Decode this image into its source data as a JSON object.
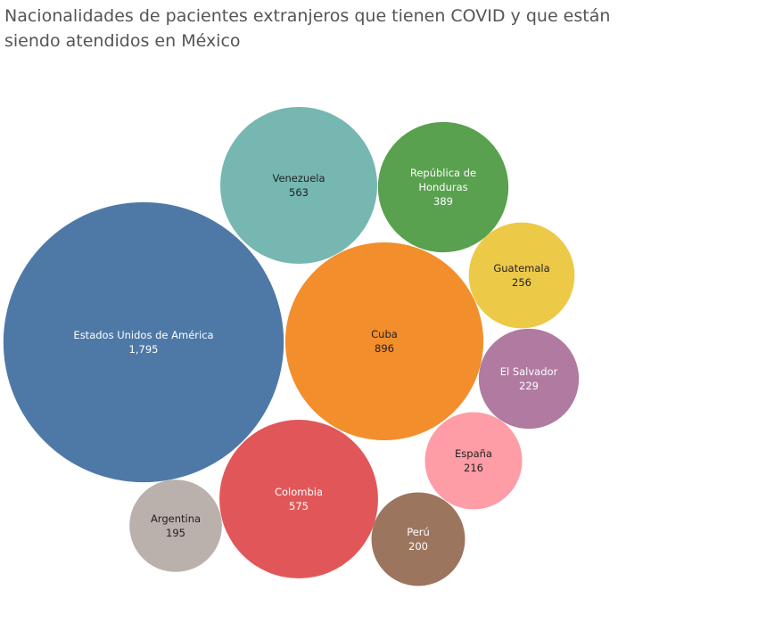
{
  "chart_data": {
    "type": "packed-bubble",
    "title": "Nacionalidades de pacientes extranjeros que tienen COVID y que están siendo atendidos en México",
    "series": [
      {
        "name": "Estados Unidos de América",
        "value": "1,795",
        "n": 1795,
        "color": "#4e79a7",
        "text_color": "#ffffff"
      },
      {
        "name": "Cuba",
        "value": "896",
        "n": 896,
        "color": "#f28e2b",
        "text_color": "#222222"
      },
      {
        "name": "Colombia",
        "value": "575",
        "n": 575,
        "color": "#e15759",
        "text_color": "#ffffff"
      },
      {
        "name": "Venezuela",
        "value": "563",
        "n": 563,
        "color": "#76b7b2",
        "text_color": "#222222"
      },
      {
        "name": "República de Honduras",
        "value": "389",
        "n": 389,
        "color": "#59a14f",
        "text_color": "#ffffff"
      },
      {
        "name": "Guatemala",
        "value": "256",
        "n": 256,
        "color": "#edc948",
        "text_color": "#222222"
      },
      {
        "name": "El Salvador",
        "value": "229",
        "n": 229,
        "color": "#b07aa1",
        "text_color": "#ffffff"
      },
      {
        "name": "España",
        "value": "216",
        "n": 216,
        "color": "#ff9da7",
        "text_color": "#222222"
      },
      {
        "name": "Perú",
        "value": "200",
        "n": 200,
        "color": "#9c755f",
        "text_color": "#ffffff"
      },
      {
        "name": "Argentina",
        "value": "195",
        "n": 195,
        "color": "#bab0ac",
        "text_color": "#222222"
      }
    ]
  }
}
